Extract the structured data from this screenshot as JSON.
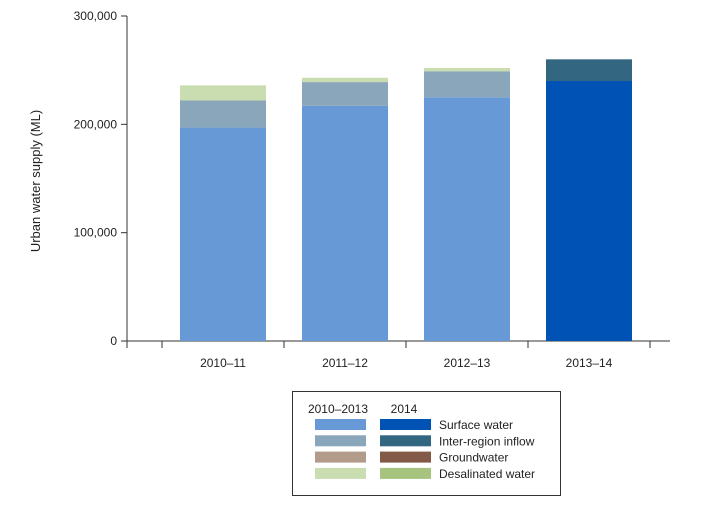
{
  "chart_data": {
    "type": "bar",
    "stacked": true,
    "ylabel": "Urban water supply (ML)",
    "xlabel": "",
    "ylim": [
      0,
      300000
    ],
    "yticks": [
      0,
      100000,
      200000,
      300000
    ],
    "ytick_labels": [
      "0",
      "100,000",
      "200,000",
      "300,000"
    ],
    "categories": [
      "2010–11",
      "2011–12",
      "2012–13",
      "2013–14"
    ],
    "grid": false,
    "legend": {
      "placement": "bottom-center",
      "column_headers": [
        "2010–2013",
        "2014"
      ],
      "entries": [
        "Surface water",
        "Inter-region inflow",
        "Groundwater",
        "Desalinated water"
      ]
    },
    "series": [
      {
        "name": "Surface water",
        "values": [
          197000,
          217000,
          225000,
          240000
        ],
        "colors": {
          "2010–2013": "#6699d6",
          "2014": "#0052b4"
        }
      },
      {
        "name": "Inter-region inflow",
        "values": [
          25000,
          22000,
          24000,
          20000
        ],
        "colors": {
          "2010–2013": "#8aa6ba",
          "2014": "#336680"
        }
      },
      {
        "name": "Groundwater",
        "values": [
          0,
          0,
          0,
          0
        ],
        "colors": {
          "2010–2013": "#b39b8c",
          "2014": "#835a47"
        }
      },
      {
        "name": "Desalinated water",
        "values": [
          14000,
          4000,
          3000,
          0
        ],
        "colors": {
          "2010–2013": "#c9ddb0",
          "2014": "#a6c47d"
        }
      }
    ],
    "category_period": [
      "2010–2013",
      "2010–2013",
      "2010–2013",
      "2014"
    ]
  }
}
